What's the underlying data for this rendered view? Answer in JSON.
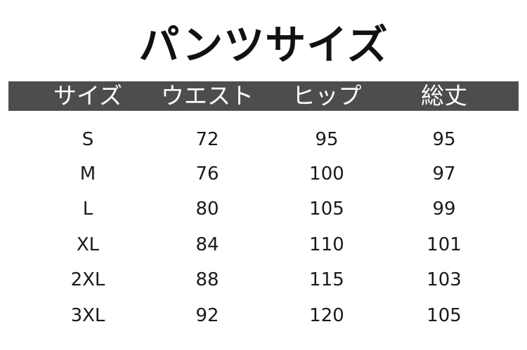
{
  "title": "パンツサイズ",
  "columns": [
    "サイズ",
    "ウエスト",
    "ヒップ",
    "総丈"
  ],
  "rows": [
    [
      "S",
      "72",
      "95",
      "95"
    ],
    [
      "M",
      "76",
      "100",
      "97"
    ],
    [
      "L",
      "80",
      "105",
      "99"
    ],
    [
      "XL",
      "84",
      "110",
      "101"
    ],
    [
      "2XL",
      "88",
      "115",
      "103"
    ],
    [
      "3XL",
      "92",
      "120",
      "105"
    ]
  ],
  "colors": {
    "header_bg": "#4d4d4d",
    "header_text": "#ffffff",
    "text": "#111111"
  }
}
